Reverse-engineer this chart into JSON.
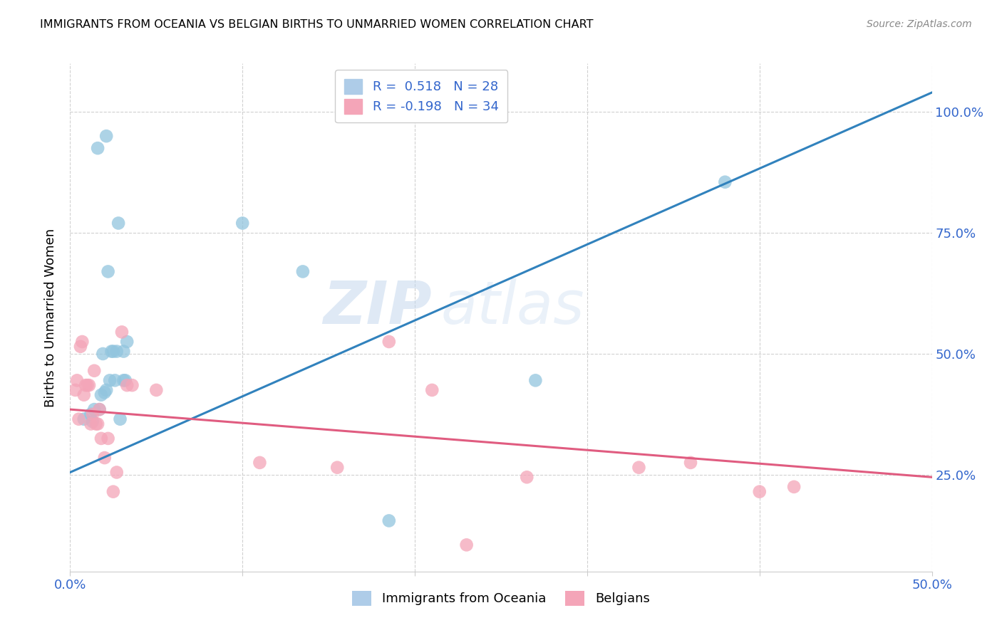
{
  "title": "IMMIGRANTS FROM OCEANIA VS BELGIAN BIRTHS TO UNMARRIED WOMEN CORRELATION CHART",
  "source": "Source: ZipAtlas.com",
  "ylabel": "Births to Unmarried Women",
  "blue_color": "#92c5de",
  "pink_color": "#f4a5b8",
  "trendline_blue": "#3182bd",
  "trendline_pink": "#e05c80",
  "watermark_zip": "ZIP",
  "watermark_atlas": "atlas",
  "blue_x": [
    0.008,
    0.012,
    0.013,
    0.014,
    0.016,
    0.017,
    0.018,
    0.019,
    0.02,
    0.021,
    0.021,
    0.022,
    0.023,
    0.024,
    0.025,
    0.026,
    0.027,
    0.028,
    0.029,
    0.031,
    0.031,
    0.032,
    0.033,
    0.1,
    0.135,
    0.185,
    0.27,
    0.38
  ],
  "blue_y": [
    0.365,
    0.375,
    0.36,
    0.385,
    0.925,
    0.385,
    0.415,
    0.5,
    0.42,
    0.425,
    0.95,
    0.67,
    0.445,
    0.505,
    0.505,
    0.445,
    0.505,
    0.77,
    0.365,
    0.445,
    0.505,
    0.445,
    0.525,
    0.77,
    0.67,
    0.155,
    0.445,
    0.855
  ],
  "pink_x": [
    0.003,
    0.004,
    0.005,
    0.006,
    0.007,
    0.008,
    0.009,
    0.01,
    0.011,
    0.012,
    0.013,
    0.014,
    0.015,
    0.016,
    0.017,
    0.018,
    0.02,
    0.022,
    0.025,
    0.027,
    0.03,
    0.033,
    0.036,
    0.05,
    0.11,
    0.155,
    0.185,
    0.21,
    0.23,
    0.265,
    0.33,
    0.36,
    0.4,
    0.42
  ],
  "pink_y": [
    0.425,
    0.445,
    0.365,
    0.515,
    0.525,
    0.415,
    0.435,
    0.435,
    0.435,
    0.355,
    0.375,
    0.465,
    0.355,
    0.355,
    0.385,
    0.325,
    0.285,
    0.325,
    0.215,
    0.255,
    0.545,
    0.435,
    0.435,
    0.425,
    0.275,
    0.265,
    0.525,
    0.425,
    0.105,
    0.245,
    0.265,
    0.275,
    0.215,
    0.225
  ],
  "blue_trend_x": [
    0.0,
    0.5
  ],
  "blue_trend_y": [
    0.255,
    1.04
  ],
  "pink_trend_x": [
    0.0,
    0.5
  ],
  "pink_trend_y": [
    0.385,
    0.245
  ],
  "xlim": [
    0.0,
    0.5
  ],
  "ylim": [
    0.05,
    1.1
  ],
  "x_ticks": [
    0.0,
    0.1,
    0.2,
    0.3,
    0.4,
    0.5
  ],
  "x_tick_labels": [
    "0.0%",
    "",
    "",
    "",
    "",
    "50.0%"
  ],
  "y_ticks": [
    0.25,
    0.5,
    0.75,
    1.0
  ],
  "y_tick_labels_right": [
    "25.0%",
    "50.0%",
    "75.0%",
    "100.0%"
  ],
  "grid_color": "#d0d0d0",
  "background_color": "#ffffff",
  "marker_size": 180
}
